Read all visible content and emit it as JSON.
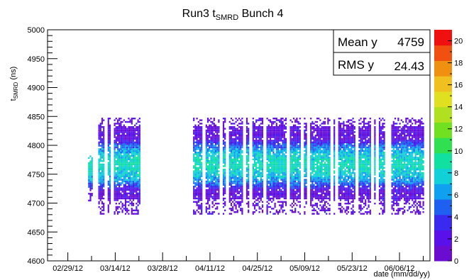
{
  "chart_data": {
    "type": "heatmap",
    "title": "Run3 t",
    "title_sub": "SMRD",
    "title_suffix": " Bunch 4",
    "ylabel": "t",
    "ylabel_sub": "SMRD",
    "ylabel_suffix": " (ns)",
    "xlabel": "date (mm/dd/yy)",
    "ylim": [
      4600,
      5000
    ],
    "y_ticks": [
      4600,
      4650,
      4700,
      4750,
      4800,
      4850,
      4900,
      4950,
      5000
    ],
    "x_tick_labels": [
      "02/29/12",
      "03/14/12",
      "03/28/12",
      "04/11/12",
      "04/25/12",
      "05/09/12",
      "05/23/12",
      "06/06/12"
    ],
    "xlim": [
      "2012-02-23",
      "2012-06-15"
    ],
    "stats": {
      "mean_label": "Mean y",
      "mean_value": "4759",
      "rms_label": "RMS y",
      "rms_value": "24.43"
    },
    "colorbar": {
      "range": [
        0,
        21
      ],
      "ticks": [
        0,
        2,
        4,
        6,
        8,
        10,
        12,
        14,
        16,
        18,
        20
      ],
      "palette": [
        "#6a0dd0",
        "#5a10e8",
        "#3a2af0",
        "#2060f0",
        "#10a0f0",
        "#10d0d8",
        "#10e0a0",
        "#30e050",
        "#70e020",
        "#b0e020",
        "#e0e020",
        "#f0c020",
        "#f09010",
        "#f05010",
        "#f01010"
      ]
    },
    "data_ranges": [
      {
        "from": "2012-03-06",
        "to": "2012-03-07",
        "ymin": 4700,
        "ymax": 4782
      },
      {
        "from": "2012-03-09",
        "to": "2012-03-21",
        "ymin": 4680,
        "ymax": 4845
      },
      {
        "from": "2012-04-06",
        "to": "2012-06-13",
        "ymin": 4680,
        "ymax": 4845
      }
    ],
    "gap_dates": [
      "2012-03-11",
      "2012-03-13",
      "2012-04-09",
      "2012-04-14",
      "2012-04-16",
      "2012-04-21",
      "2012-04-23",
      "2012-04-27",
      "2012-05-04",
      "2012-05-08",
      "2012-05-10",
      "2012-05-17",
      "2012-05-18",
      "2012-05-24",
      "2012-05-29",
      "2012-05-30",
      "2012-06-02",
      "2012-06-03"
    ],
    "peak_y": 4765
  }
}
